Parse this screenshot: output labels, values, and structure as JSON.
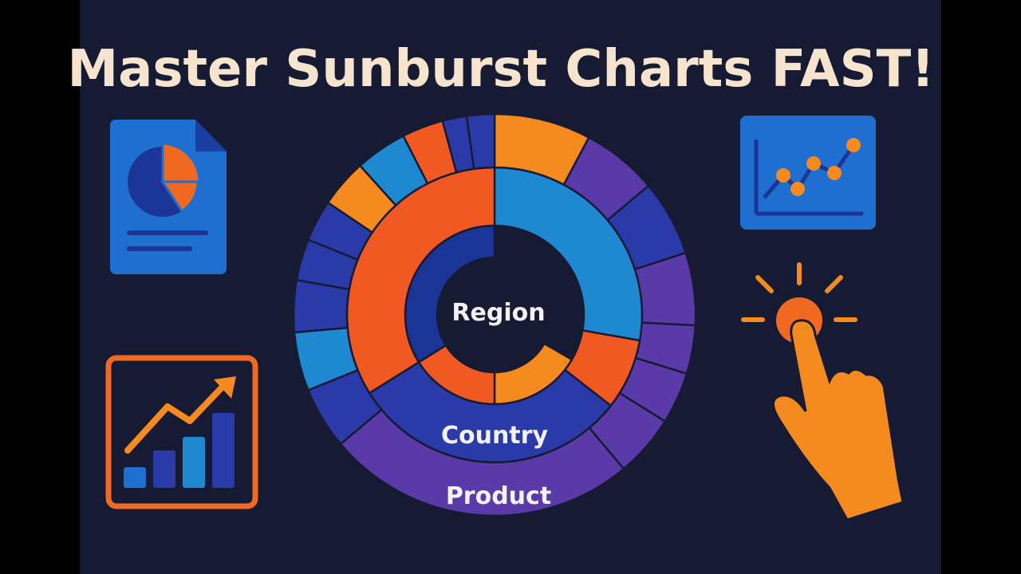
{
  "header": {
    "title": "Master Sunburst Charts FAST!"
  },
  "sunburst": {
    "labels": [
      "Region",
      "Country",
      "Product"
    ]
  }
}
